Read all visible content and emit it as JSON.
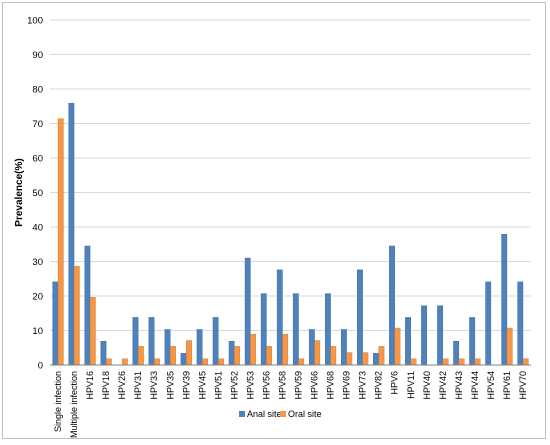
{
  "chart_data": {
    "type": "bar",
    "title": "",
    "xlabel": "",
    "ylabel": "Prevalence(%)",
    "ylim": [
      0,
      100
    ],
    "yticks": [
      0,
      10,
      20,
      30,
      40,
      50,
      60,
      70,
      80,
      90,
      100
    ],
    "grid": true,
    "legend_position": "bottom",
    "categories": [
      "Single infection",
      "Multiple infection",
      "HPV16",
      "HPV18",
      "HPV26",
      "HPV31",
      "HPV33",
      "HPV35",
      "HPV39",
      "HPV45",
      "HPV51",
      "HPV52",
      "HPV53",
      "HPV56",
      "HPV58",
      "HPV59",
      "HPV66",
      "HPV68",
      "HPV69",
      "HPV73",
      "HPV82",
      "HPV6",
      "HPV11",
      "HPV40",
      "HPV42",
      "HPV43",
      "HPV44",
      "HPV54",
      "HPV61",
      "HPV70"
    ],
    "series": [
      {
        "name": "Anal site",
        "color": "#4f81bd",
        "values": [
          24.1,
          75.9,
          34.5,
          6.9,
          0,
          13.8,
          13.8,
          10.3,
          3.4,
          10.3,
          13.8,
          6.9,
          31.0,
          20.7,
          27.6,
          20.7,
          10.3,
          20.7,
          10.3,
          27.6,
          3.4,
          34.5,
          13.8,
          17.2,
          17.2,
          6.9,
          13.8,
          24.1,
          37.9,
          24.1
        ]
      },
      {
        "name": "Oral site",
        "color": "#f79646",
        "values": [
          71.4,
          28.6,
          19.6,
          1.8,
          1.8,
          5.4,
          1.8,
          5.4,
          7.1,
          1.8,
          1.8,
          5.4,
          8.9,
          5.4,
          8.9,
          1.8,
          7.1,
          5.4,
          3.6,
          3.6,
          5.4,
          10.7,
          1.8,
          0,
          1.8,
          1.8,
          1.8,
          0,
          10.7,
          1.8
        ]
      }
    ]
  }
}
